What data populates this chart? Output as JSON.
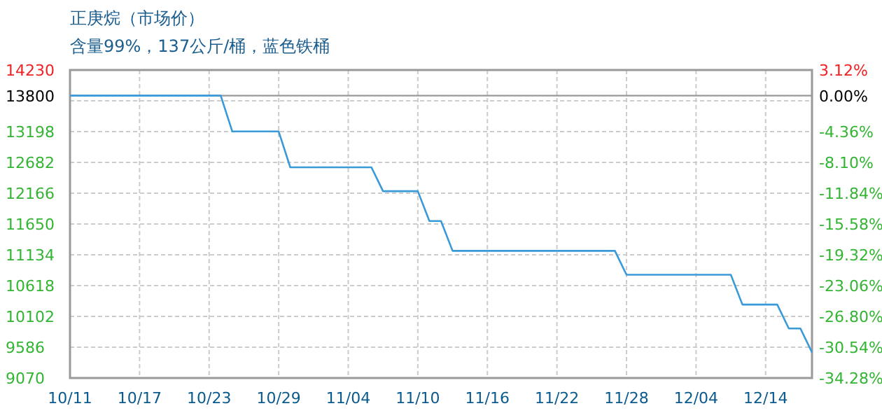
{
  "chart_data": {
    "type": "line",
    "title": "正庚烷（市场价）",
    "subtitle": "含量99%，137公斤/桶，蓝色铁桶",
    "categories": [
      "10/11",
      null,
      null,
      null,
      null,
      null,
      "10/17",
      null,
      null,
      null,
      null,
      null,
      "10/23",
      null,
      null,
      null,
      null,
      null,
      "10/29",
      null,
      null,
      null,
      null,
      null,
      "11/04",
      null,
      null,
      null,
      null,
      null,
      "11/10",
      null,
      null,
      null,
      null,
      null,
      "11/16",
      null,
      null,
      null,
      null,
      null,
      "11/22",
      null,
      null,
      null,
      null,
      null,
      "11/28",
      null,
      null,
      null,
      null,
      null,
      "12/04",
      null,
      null,
      null,
      null,
      null,
      "12/14",
      null,
      null,
      null,
      null
    ],
    "series": [
      {
        "color": "#3a9ad9",
        "values": [
          13800,
          13800,
          13800,
          13800,
          13800,
          13800,
          13800,
          13800,
          13800,
          13800,
          13800,
          13800,
          13800,
          13800,
          13200,
          13200,
          13200,
          13200,
          13200,
          12600,
          12600,
          12600,
          12600,
          12600,
          12600,
          12600,
          12600,
          12200,
          12200,
          12200,
          12200,
          11700,
          11700,
          11200,
          11200,
          11200,
          11200,
          11200,
          11200,
          11200,
          11200,
          11200,
          11200,
          11200,
          11200,
          11200,
          11200,
          11200,
          10800,
          10800,
          10800,
          10800,
          10800,
          10800,
          10800,
          10800,
          10800,
          10800,
          10300,
          10300,
          10300,
          10300,
          9900,
          9900,
          9500
        ]
      }
    ],
    "ylim": [
      9070,
      14230
    ],
    "yticks": [
      9070,
      9586,
      10102,
      10618,
      11134,
      11650,
      12166,
      12682,
      13198,
      {
        "value": 13714,
        "label": null
      },
      13800,
      14230
    ],
    "y2lim": [
      -34.28,
      3.12
    ],
    "y2ticks": [
      {
        "value": -34.28,
        "label": "-34.28%"
      },
      {
        "value": -30.54,
        "label": "-30.54%"
      },
      {
        "value": -26.8,
        "label": "-26.80%"
      },
      {
        "value": -23.06,
        "label": "-23.06%"
      },
      {
        "value": -19.32,
        "label": "-19.32%"
      },
      {
        "value": -15.58,
        "label": "-15.58%"
      },
      {
        "value": -11.84,
        "label": "-11.84%"
      },
      {
        "value": -8.1,
        "label": "-8.10%"
      },
      {
        "value": -4.36,
        "label": "-4.36%"
      },
      {
        "value": 0,
        "label": "0.00%"
      },
      {
        "value": 3.12,
        "label": "3.12%"
      }
    ],
    "ref_lines": [
      {
        "axis": "y",
        "value": 13800,
        "color": "#999999",
        "line_style": "solid"
      }
    ],
    "grid": true
  }
}
